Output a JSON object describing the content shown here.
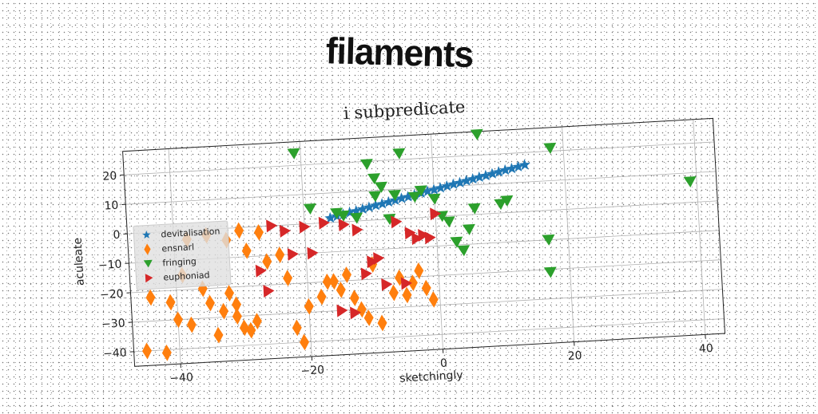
{
  "headline": "filaments",
  "chart_data": {
    "type": "scatter",
    "title": "i subpredicate",
    "xlabel": "sketchingly",
    "ylabel": "aculeate",
    "xlim": [
      -47,
      43
    ],
    "ylim": [
      -45,
      28
    ],
    "xticks": [
      -40,
      -20,
      0,
      20,
      40
    ],
    "yticks": [
      20,
      10,
      0,
      -10,
      -20,
      -30,
      -40
    ],
    "grid": true,
    "legend_position": "center-left",
    "series": [
      {
        "name": "devitalisation",
        "marker": "star",
        "color": "#1f77b4",
        "x": [
          -16,
          -15,
          -14,
          -13,
          -12,
          -11,
          -10,
          -9,
          -8,
          -7,
          -6,
          -5,
          -4,
          -3,
          -2,
          -1,
          0,
          1,
          2,
          3,
          4,
          5,
          6,
          7,
          8,
          9,
          10,
          11,
          12,
          13,
          14
        ],
        "y": [
          1.5,
          2,
          2.5,
          3,
          3.4,
          3.9,
          4.4,
          4.9,
          5.3,
          5.8,
          6.3,
          6.8,
          7.2,
          7.7,
          8.2,
          8.7,
          9.1,
          9.6,
          10.1,
          10.6,
          11,
          11.5,
          12,
          12.5,
          12.9,
          13.4,
          13.9,
          14.4,
          14.8,
          15.3,
          15.8
        ]
      },
      {
        "name": "ensnarl",
        "marker": "diamond",
        "color": "#ff7f0e",
        "x": [
          -45,
          -42,
          -44,
          -41,
          -40,
          -38,
          -36,
          -35,
          -33,
          -32,
          -31,
          -30,
          -29,
          -28,
          -38,
          -35,
          -32,
          -30,
          -29,
          -26,
          -24,
          -23,
          -22,
          -21,
          -20,
          -18,
          -17,
          -15,
          -14,
          -13,
          -12,
          -11,
          -10,
          -7,
          -6,
          -4,
          -3,
          -2,
          -1,
          -39,
          -34,
          -31,
          -27,
          -16,
          -9,
          -5
        ],
        "y": [
          -40,
          -41,
          -22,
          -24,
          -30,
          -32,
          -20,
          -25,
          -28,
          -22,
          -30,
          -34,
          -35,
          -32,
          -3,
          -2,
          -4,
          -1,
          -8,
          -12,
          -10,
          -18,
          -35,
          -40,
          -28,
          -25,
          -20,
          -23,
          -18,
          -26,
          -30,
          -33,
          -15,
          -25,
          -20,
          -22,
          -18,
          -24,
          -28,
          -15,
          -36,
          -26,
          -2,
          -20,
          -35,
          -26
        ]
      },
      {
        "name": "fringing",
        "marker": "triangle-down",
        "color": "#2ca02c",
        "x": [
          -21,
          -10,
          -9,
          -8,
          -5,
          7,
          18,
          39,
          -19,
          -15,
          -14,
          -12,
          -9,
          -6,
          -3,
          -2,
          0,
          1,
          2,
          3,
          4,
          5,
          6,
          10,
          11,
          17,
          17,
          -7
        ],
        "y": [
          24,
          19,
          14,
          11,
          22,
          27,
          21,
          7,
          5,
          3,
          2,
          1,
          8,
          8,
          7,
          9,
          6,
          0,
          -2,
          -9,
          -12,
          -5,
          2,
          3,
          4,
          -10,
          -21,
          0
        ],
        "y_offset_note": ""
      },
      {
        "name": "euphoniad",
        "marker": "triangle-right",
        "color": "#d62728",
        "x": [
          -25,
          -23,
          -20,
          -22,
          -19,
          -17,
          -14,
          -12,
          -10,
          -9,
          -8,
          -6,
          -4,
          -3,
          -1,
          0,
          -27,
          -26,
          -15,
          -13,
          -11,
          -5,
          -2
        ],
        "y": [
          0,
          -2,
          -1,
          -10,
          -10,
          0,
          -1,
          -3,
          -14,
          -13,
          -22,
          -1,
          -5,
          -7,
          -7,
          1,
          -15,
          -22,
          -30,
          -31,
          -18,
          -22,
          -6
        ]
      }
    ]
  }
}
